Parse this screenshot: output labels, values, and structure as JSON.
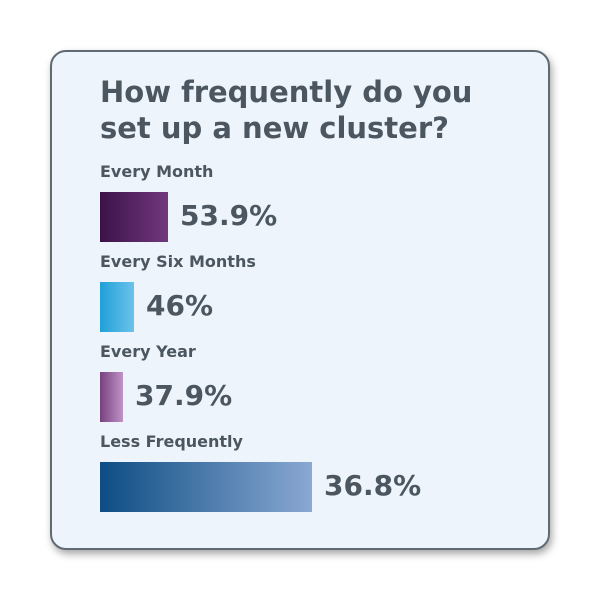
{
  "chart_data": {
    "type": "bar",
    "orientation": "horizontal",
    "title": "How frequently do you set up a new cluster?",
    "categories": [
      "Every Month",
      "Every Six Months",
      "Every Year",
      "Less Frequently"
    ],
    "values": [
      53.9,
      46,
      37.9,
      36.8
    ],
    "value_labels": [
      "53.9%",
      "46%",
      "37.9%",
      "36.8%"
    ],
    "bar_fill_fractions": [
      0.32,
      0.16,
      0.11,
      1.0
    ],
    "bar_gradients": [
      [
        "#3c1248",
        "#71387e"
      ],
      [
        "#1fa1d8",
        "#6cc2ea"
      ],
      [
        "#77417f",
        "#bf94c6"
      ],
      [
        "#0d4d84",
        "#8aa8d2"
      ]
    ],
    "grid": false,
    "legend": "none"
  }
}
